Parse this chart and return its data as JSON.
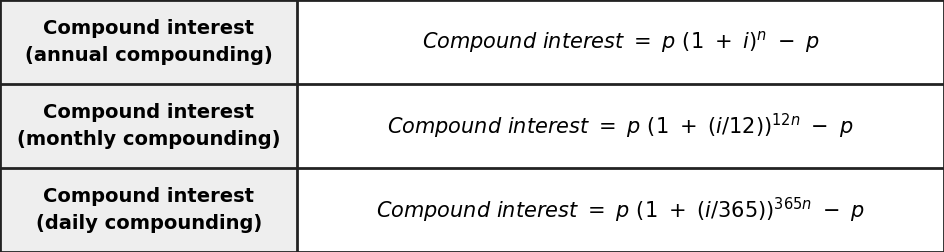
{
  "rows": [
    {
      "label": "Compound interest\n(annual compounding)",
      "formula_parts": [
        {
          "text": "Compound interest  =  ",
          "style": "italic"
        },
        {
          "text": "p",
          "style": "italic"
        },
        {
          "text": " (1 + ",
          "style": "italic"
        },
        {
          "text": "i",
          "style": "italic"
        },
        {
          "text": ")",
          "style": "italic"
        },
        {
          "text": "n",
          "style": "superscript"
        },
        {
          "text": "  −  ",
          "style": "italic"
        },
        {
          "text": "p",
          "style": "italic"
        }
      ],
      "formula_latex": "$\\it{Compound\\ interest\\ =\\ p\\,(1 + i)^{n} - p}$"
    },
    {
      "label": "Compound interest\n(monthly compounding)",
      "formula_latex": "$\\it{Compound\\ interest\\ =\\ p\\,(1 + (i/12))^{12n} - p}$"
    },
    {
      "label": "Compound interest\n(daily compounding)",
      "formula_latex": "$\\it{Compound\\ interest\\ =\\ p\\,(1 + (i/365))^{365n} - p}$"
    }
  ],
  "col_split": 0.315,
  "border_color": "#222222",
  "border_width": 2.0,
  "label_fontsize": 14,
  "formula_fontsize": 15,
  "label_bg": "#eeeeee",
  "formula_bg": "#ffffff",
  "fig_width": 9.44,
  "fig_height": 2.52,
  "dpi": 100
}
